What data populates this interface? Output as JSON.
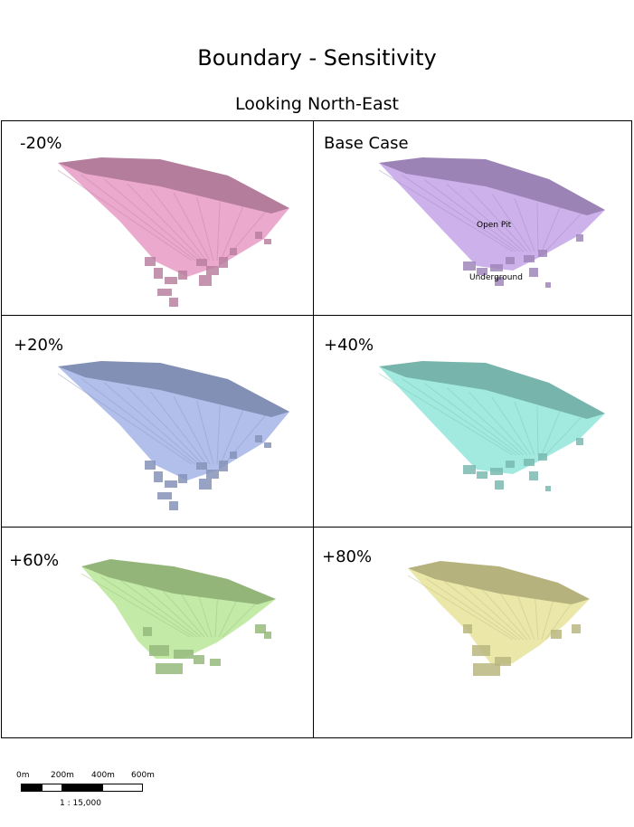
{
  "title": "Boundary - Sensitivity",
  "subtitle": "Looking North-East",
  "panels": [
    {
      "label": "-20%",
      "color": "#e8a0c8"
    },
    {
      "label": "Base Case",
      "color": "#c8a8e8",
      "annotations": [
        "Open Pit",
        "Underground"
      ]
    },
    {
      "label": "+20%",
      "color": "#a8b8e8"
    },
    {
      "label": "+40%",
      "color": "#98e8dc"
    },
    {
      "label": "+60%",
      "color": "#bce89c"
    },
    {
      "label": "+80%",
      "color": "#e8e4a0"
    }
  ],
  "scale": {
    "ticks": [
      "0m",
      "200m",
      "400m",
      "600m"
    ],
    "ratio": "1 : 15,000"
  }
}
